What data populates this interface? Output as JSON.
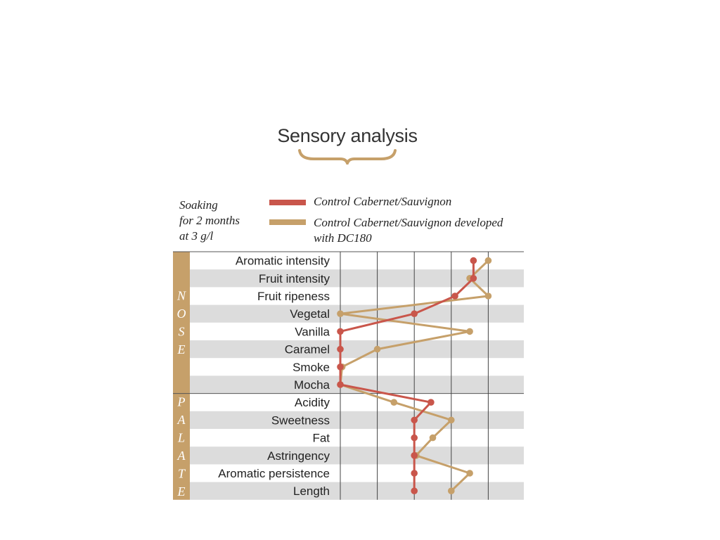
{
  "title": "Sensory analysis",
  "note": [
    "Soaking",
    "for 2 months",
    "at 3 g/l"
  ],
  "colors": {
    "control": "#c9564b",
    "dc180": "#c6a06a",
    "band": "#c6a06a",
    "stripe": "#dcdcdc",
    "grid": "#444444"
  },
  "chart_data": {
    "type": "line",
    "orientation": "horizontal-profile",
    "title": "Sensory analysis",
    "xlim": [
      0,
      5
    ],
    "grid": true,
    "categories": [
      "Aromatic intensity",
      "Fruit intensity",
      "Fruit ripeness",
      "Vegetal",
      "Vanilla",
      "Caramel",
      "Smoke",
      "Mocha",
      "Acidity",
      "Sweetness",
      "Fat",
      "Astringency",
      "Aromatic persistence",
      "Length"
    ],
    "groups": [
      {
        "label": "NOSE",
        "letters": [
          "N",
          "O",
          "S",
          "E"
        ],
        "count": 8
      },
      {
        "label": "PALATE",
        "letters": [
          "P",
          "A",
          "L",
          "A",
          "T",
          "E"
        ],
        "count": 6
      }
    ],
    "series": [
      {
        "name": "Control Cabernet/Sauvignon",
        "color": "#c9564b",
        "values": [
          3.6,
          3.6,
          3.1,
          2.0,
          0.0,
          0.0,
          0.0,
          0.0,
          2.45,
          2.0,
          2.0,
          2.0,
          2.0,
          2.0
        ]
      },
      {
        "name": "Control Cabernet/Sauvignon developed with DC180",
        "color": "#c6a06a",
        "values": [
          4.0,
          3.5,
          4.0,
          0.0,
          3.5,
          1.0,
          0.05,
          0.0,
          1.45,
          3.0,
          2.5,
          2.05,
          3.5,
          3.0
        ]
      }
    ]
  },
  "legend": [
    {
      "label_lines": [
        "Control Cabernet/Sauvignon"
      ]
    },
    {
      "label_lines": [
        "Control Cabernet/Sauvignon developed",
        "with DC180"
      ]
    }
  ]
}
